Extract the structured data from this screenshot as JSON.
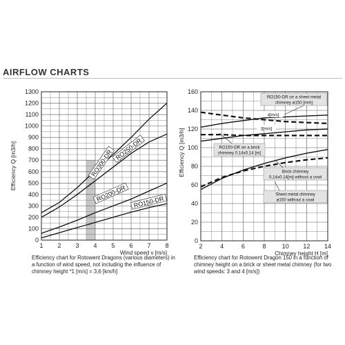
{
  "page_title": "AIRFLOW CHARTS",
  "captions": {
    "left": "Efficiency chart for Rotowent Dragons (various diameters) in a function of wind speed, not including the influence of chimney height *1 [m/s] = 3,6 [km/h]",
    "right": "Efficiency chart for Rotowent Dragon 150 in a function of chimney height on a brick or sheet metal chimney (for two wind speeds: 3 and 4 [m/s])"
  },
  "chart_data": [
    {
      "type": "line",
      "ylabel": "Efficiency Q [m3/h]",
      "xlabel": "Wind speed v [m/s]",
      "xlim": [
        1,
        8
      ],
      "ylim": [
        0,
        1300
      ],
      "x_ticks": [
        1,
        2,
        3,
        4,
        5,
        6,
        7,
        8
      ],
      "y_ticks": [
        0,
        100,
        200,
        300,
        400,
        500,
        600,
        700,
        800,
        900,
        1000,
        1100,
        1200,
        1300
      ],
      "grid": true,
      "highlight_band": [
        3.5,
        4
      ],
      "series": [
        {
          "name": "RO300-DR",
          "x": [
            1,
            2,
            3,
            4,
            5,
            6,
            7,
            8
          ],
          "y": [
            240,
            330,
            460,
            610,
            750,
            900,
            1060,
            1200
          ]
        },
        {
          "name": "RO250-DR",
          "x": [
            1,
            2,
            3,
            4,
            5,
            6,
            7,
            8
          ],
          "y": [
            200,
            290,
            400,
            520,
            640,
            760,
            860,
            930
          ]
        },
        {
          "name": "RO200-DR",
          "x": [
            1,
            2,
            3,
            4,
            5,
            6,
            7,
            8
          ],
          "y": [
            60,
            115,
            175,
            240,
            300,
            360,
            430,
            500
          ]
        },
        {
          "name": "RO150-DR",
          "x": [
            1,
            2,
            3,
            4,
            5,
            6,
            7,
            8
          ],
          "y": [
            20,
            65,
            110,
            155,
            200,
            245,
            285,
            320
          ]
        }
      ]
    },
    {
      "type": "line",
      "ylabel": "Efficiency Q [m3/h]",
      "xlabel": "Chimney height H [m]",
      "xlim": [
        2,
        14
      ],
      "ylim": [
        0,
        160
      ],
      "x_ticks": [
        2,
        4,
        6,
        8,
        10,
        12,
        14
      ],
      "y_ticks": [
        0,
        20,
        40,
        60,
        80,
        100,
        120,
        140,
        160
      ],
      "grid": true,
      "series": [
        {
          "name": "4[m/s]",
          "style": "dashed",
          "x": [
            2,
            4,
            6,
            8,
            10,
            12,
            14
          ],
          "y": [
            138,
            135,
            132,
            130,
            128,
            127,
            126
          ]
        },
        {
          "name": "4[m/s]",
          "style": "solid",
          "x": [
            2,
            4,
            6,
            8,
            10,
            12,
            14
          ],
          "y": [
            122,
            126,
            129,
            132,
            133,
            134,
            135
          ]
        },
        {
          "name": "3[m/s]",
          "style": "dashed",
          "x": [
            2,
            4,
            6,
            8,
            10,
            12,
            14
          ],
          "y": [
            114,
            114,
            113,
            113,
            113,
            113,
            113
          ]
        },
        {
          "name": "3[m/s]",
          "style": "solid",
          "x": [
            2,
            4,
            6,
            8,
            10,
            12,
            14
          ],
          "y": [
            107,
            110,
            113,
            115,
            117,
            119,
            120
          ]
        },
        {
          "name": "brick",
          "style": "solid",
          "x": [
            2,
            4,
            6,
            8,
            10,
            12,
            14
          ],
          "y": [
            55,
            67,
            76,
            83,
            89,
            94,
            98
          ]
        },
        {
          "name": "sheet metal",
          "style": "dashed",
          "x": [
            2,
            4,
            6,
            8,
            10,
            12,
            14
          ],
          "y": [
            58,
            68,
            75,
            80,
            84,
            87,
            89
          ]
        }
      ],
      "annotations": [
        {
          "text": "RO150-DR on a sheet metal chimney ø150 [mm]",
          "lines": [
            "RO150-DR on a sheet metal",
            "chimney  ø150 [mm]"
          ]
        },
        {
          "text": "4[m/s]"
        },
        {
          "text": "3[m/s]"
        },
        {
          "text": "RO150-DR on a brick chimney 0.14x0.14 [m]",
          "lines": [
            "RO150-DR on a brick",
            "chimney  0.14x0.14 [m]"
          ]
        },
        {
          "text": "Brick chimney 0.14x0.14[m] without a cowl",
          "lines": [
            "Brick chimney",
            "0.14x0.14[m] without a cowl"
          ]
        },
        {
          "text": "Sheet metal chimney ø150 without a cowl",
          "lines": [
            "Sheet metal chimney",
            "ø150 without a cowl"
          ]
        }
      ]
    }
  ],
  "colors": {
    "line": "#111111",
    "grid": "#555555",
    "band": "#c8c8c8",
    "label_box": "#e3e3e3"
  }
}
